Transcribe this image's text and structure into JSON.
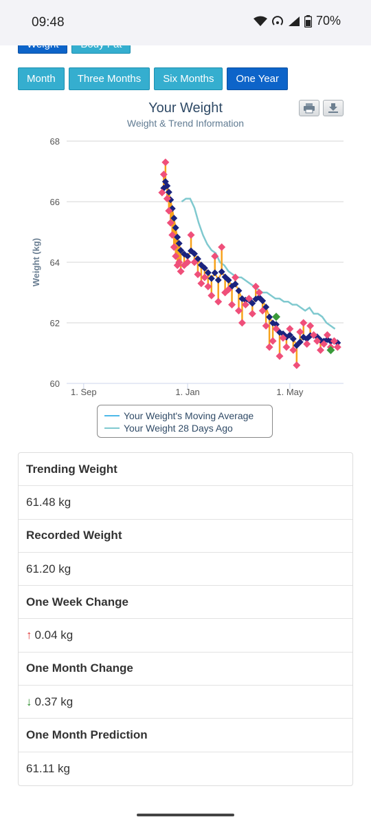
{
  "status_bar": {
    "time": "09:48",
    "battery": "70%"
  },
  "top_tabs": [
    {
      "label": "Weight",
      "active": true
    },
    {
      "label": "Body Fat",
      "active": false
    }
  ],
  "range_buttons": [
    {
      "label": "Month",
      "active": false
    },
    {
      "label": "Three Months",
      "active": false
    },
    {
      "label": "Six Months",
      "active": false
    },
    {
      "label": "One Year",
      "active": true
    }
  ],
  "chart": {
    "title": "Your Weight",
    "subtitle": "Weight & Trend Information",
    "toolbar": {
      "print_icon": "print-icon",
      "download_icon": "download-icon"
    },
    "legend": [
      "Your Weight's Moving Average",
      "Your Weight 28 Days Ago"
    ]
  },
  "chart_data": {
    "type": "line",
    "title": "Your Weight",
    "subtitle": "Weight & Trend Information",
    "ylabel": "Weight (kg)",
    "ylim": [
      60,
      68
    ],
    "yticks": [
      60,
      62,
      64,
      66,
      68
    ],
    "xticks": [
      "1. Sep",
      "1. Jan",
      "1. May"
    ],
    "x_unit": "days from 1. Sep",
    "xlim": [
      -20,
      305
    ],
    "grid": true,
    "legend_position": "bottom",
    "colors": {
      "moving_average": "#4db8e8",
      "days_ago_28": "#7fc9cf",
      "recorded": "#ef4f7a",
      "trend": "#f7a21b",
      "below_trend": "#1a237e",
      "green_marker": "#3a9a3a"
    },
    "series": [
      {
        "name": "Your Weight's Moving Average",
        "x": [],
        "values": []
      },
      {
        "name": "Your Weight 28 Days Ago",
        "x": [
          115,
          120,
          125,
          130,
          135,
          140,
          145,
          150,
          155,
          160,
          165,
          170,
          175,
          180,
          185,
          190,
          195,
          200,
          205,
          210,
          215,
          220,
          225,
          230,
          235,
          240,
          245,
          250,
          255,
          260,
          265,
          270,
          275,
          280,
          285,
          290,
          295
        ],
        "values": [
          66.0,
          66.1,
          66.1,
          65.8,
          65.3,
          64.9,
          64.6,
          64.4,
          64.3,
          64.0,
          63.9,
          63.7,
          63.6,
          63.5,
          63.5,
          63.4,
          63.3,
          63.2,
          63.1,
          63.0,
          63.0,
          62.9,
          62.8,
          62.8,
          62.7,
          62.7,
          62.6,
          62.6,
          62.5,
          62.4,
          62.5,
          62.3,
          62.3,
          62.2,
          62.0,
          61.9,
          61.8
        ]
      },
      {
        "name": "",
        "x": [
          92,
          94,
          96,
          98,
          100,
          102,
          104,
          106,
          108,
          110,
          112,
          114,
          118,
          122,
          126,
          130,
          134,
          138,
          142,
          146,
          150,
          154,
          158,
          162,
          166,
          170,
          174,
          178,
          182,
          186,
          190,
          194,
          198,
          202,
          206,
          210,
          214,
          218,
          222,
          226,
          230,
          234,
          238,
          242,
          246,
          250,
          254,
          258,
          262,
          266,
          270,
          274,
          278,
          282,
          286,
          290,
          294,
          298
        ],
        "values": [
          66.3,
          66.9,
          67.3,
          66.1,
          65.7,
          65.3,
          64.9,
          64.5,
          64.2,
          63.9,
          64.0,
          63.7,
          63.9,
          64.0,
          64.9,
          64.0,
          63.6,
          63.3,
          63.5,
          63.2,
          62.9,
          64.2,
          62.7,
          64.5,
          63.0,
          63.1,
          62.6,
          63.5,
          62.4,
          62.0,
          62.6,
          62.8,
          62.3,
          63.2,
          63.0,
          62.4,
          61.9,
          61.2,
          61.4,
          61.8,
          60.9,
          61.5,
          61.2,
          61.8,
          61.1,
          60.6,
          61.7,
          62.0,
          61.3,
          61.9,
          61.6,
          61.4,
          61.1,
          61.3,
          61.6,
          61.2,
          61.4,
          61.2
        ]
      }
    ]
  },
  "stats": [
    {
      "label": "Trending Weight",
      "value": "61.48 kg",
      "arrow": ""
    },
    {
      "label": "Recorded Weight",
      "value": "61.20 kg",
      "arrow": ""
    },
    {
      "label": "One Week Change",
      "value": "0.04 kg",
      "arrow": "↑"
    },
    {
      "label": "One Month Change",
      "value": "0.37 kg",
      "arrow": "↓"
    },
    {
      "label": "One Month Prediction",
      "value": "61.11 kg",
      "arrow": ""
    }
  ]
}
